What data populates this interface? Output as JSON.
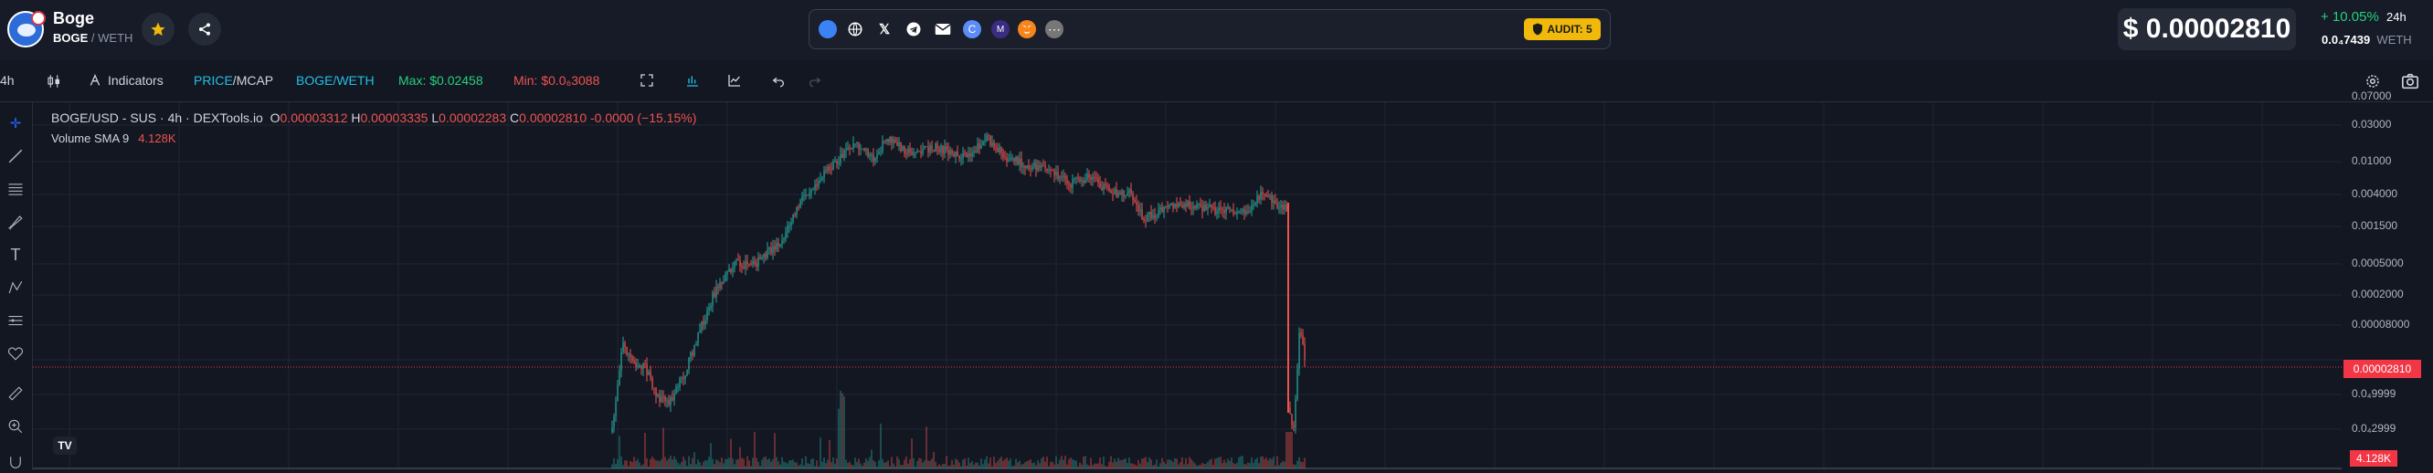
{
  "token": {
    "name": "Boge",
    "base": "BOGE",
    "quote": "WETH"
  },
  "links": {
    "audit_label": "AUDIT: 5"
  },
  "price": {
    "value": "$ 0.00002810",
    "change": "+ 10.05%",
    "change_period": "24h",
    "liquidity": "0.0₄7439",
    "liquidity_unit": "WETH"
  },
  "toolbar": {
    "interval": "4h",
    "indicators_label": "Indicators",
    "price_label": "PRICE",
    "mcap_label": "MCAP",
    "pair_label": "BOGE/WETH",
    "max_label": "Max: $0.02458",
    "min_label": "Min: $0.0₆3088"
  },
  "legend": {
    "title": "BOGE/USD - SUS · 4h · DEXTools.io",
    "o_key": "O",
    "o_val": "0.00003312",
    "h_key": "H",
    "h_val": "0.00003335",
    "l_key": "L",
    "l_val": "0.00002283",
    "c_key": "C",
    "c_val": "0.00002810",
    "change": "-0.0000 (−15.15%)",
    "volume_name": "Volume SMA 9",
    "volume_val": "4.128K"
  },
  "yaxis": {
    "ticks": [
      "0.07000",
      "0.03000",
      "0.01000",
      "0.004000",
      "0.001500",
      "0.0005000",
      "0.0002000",
      "0.00008000",
      "0.0₄9999",
      "0.0₄2999"
    ],
    "last_price": "0.00002810",
    "last_volume": "4.128K"
  },
  "colors": {
    "up": "#26a69a",
    "down": "#ef5350",
    "accent": "#f0b90b",
    "bg": "#131722"
  }
}
